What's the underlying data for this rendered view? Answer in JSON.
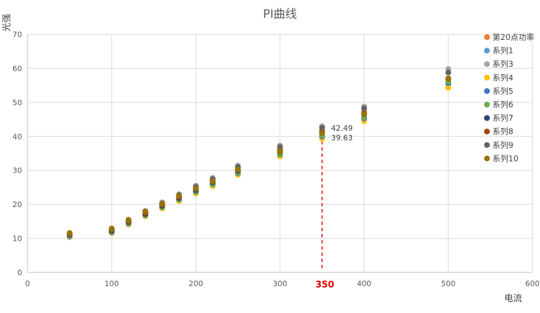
{
  "chart_data": {
    "type": "scatter",
    "title": "PI曲线",
    "xlabel": "电流",
    "ylabel": "光强",
    "xlim": [
      0,
      600
    ],
    "ylim": [
      0,
      70
    ],
    "x_ticks": [
      "0",
      "100",
      "200",
      "300",
      "400",
      "500",
      "600"
    ],
    "y_ticks": [
      "0",
      "10",
      "20",
      "30",
      "40",
      "50",
      "60",
      "70"
    ],
    "grid": true,
    "legend_position": "right",
    "x": [
      50,
      100,
      120,
      140,
      160,
      180,
      200,
      220,
      250,
      300,
      350,
      400,
      500
    ],
    "series": [
      {
        "name": "第20点功率",
        "color": "#ED7D31",
        "values": [
          null,
          null,
          null,
          null,
          null,
          null,
          null,
          null,
          null,
          null,
          41.5,
          null,
          null
        ]
      },
      {
        "name": "系列1",
        "color": "#5B9BD5",
        "values": [
          10.4,
          11.6,
          14.1,
          16.6,
          18.9,
          21.1,
          23.4,
          25.6,
          28.9,
          34.3,
          39.7,
          45.0,
          55.3
        ]
      },
      {
        "name": "系列3",
        "color": "#A5A5A5",
        "values": [
          11.3,
          12.8,
          15.5,
          18.1,
          20.6,
          23.0,
          25.5,
          27.8,
          31.4,
          37.3,
          43.0,
          48.8,
          59.8
        ]
      },
      {
        "name": "系列4",
        "color": "#FFC000",
        "values": [
          10.6,
          11.7,
          14.1,
          16.5,
          18.8,
          21.0,
          23.2,
          25.4,
          28.7,
          34.1,
          39.3,
          44.5,
          54.3
        ]
      },
      {
        "name": "系列5",
        "color": "#4472C4",
        "values": [
          10.8,
          11.9,
          14.4,
          16.8,
          19.2,
          21.4,
          23.7,
          25.9,
          29.2,
          34.7,
          40.0,
          45.3,
          55.7
        ]
      },
      {
        "name": "系列6",
        "color": "#70AD47",
        "values": [
          10.9,
          12.0,
          14.5,
          16.9,
          19.3,
          21.5,
          23.8,
          26.0,
          29.4,
          34.9,
          40.3,
          45.6,
          56.1
        ]
      },
      {
        "name": "系列7",
        "color": "#264478",
        "values": [
          11.0,
          12.2,
          14.8,
          17.2,
          19.6,
          21.9,
          24.2,
          26.5,
          29.9,
          35.5,
          41.0,
          46.5,
          57.0
        ]
      },
      {
        "name": "系列8",
        "color": "#9E480E",
        "values": [
          11.1,
          12.4,
          15.0,
          17.5,
          19.9,
          22.2,
          24.6,
          26.9,
          30.4,
          36.0,
          41.5,
          47.0,
          57.0
        ]
      },
      {
        "name": "系列9",
        "color": "#636363",
        "values": [
          11.2,
          12.6,
          15.3,
          17.9,
          20.3,
          22.7,
          25.1,
          27.4,
          31.0,
          36.8,
          42.5,
          48.2,
          58.8
        ]
      },
      {
        "name": "系列10",
        "color": "#997300",
        "values": [
          11.6,
          12.9,
          15.4,
          17.9,
          20.2,
          22.5,
          24.6,
          26.8,
          30.2,
          35.6,
          41.0,
          46.6,
          56.9
        ]
      }
    ],
    "annotations": [
      {
        "text": "42.49",
        "x": 350,
        "y": 42.49
      },
      {
        "text": "39.63",
        "x": 350,
        "y": 39.63
      }
    ],
    "reference_line": {
      "x": 350,
      "label": "350",
      "color": "#e00000"
    }
  }
}
